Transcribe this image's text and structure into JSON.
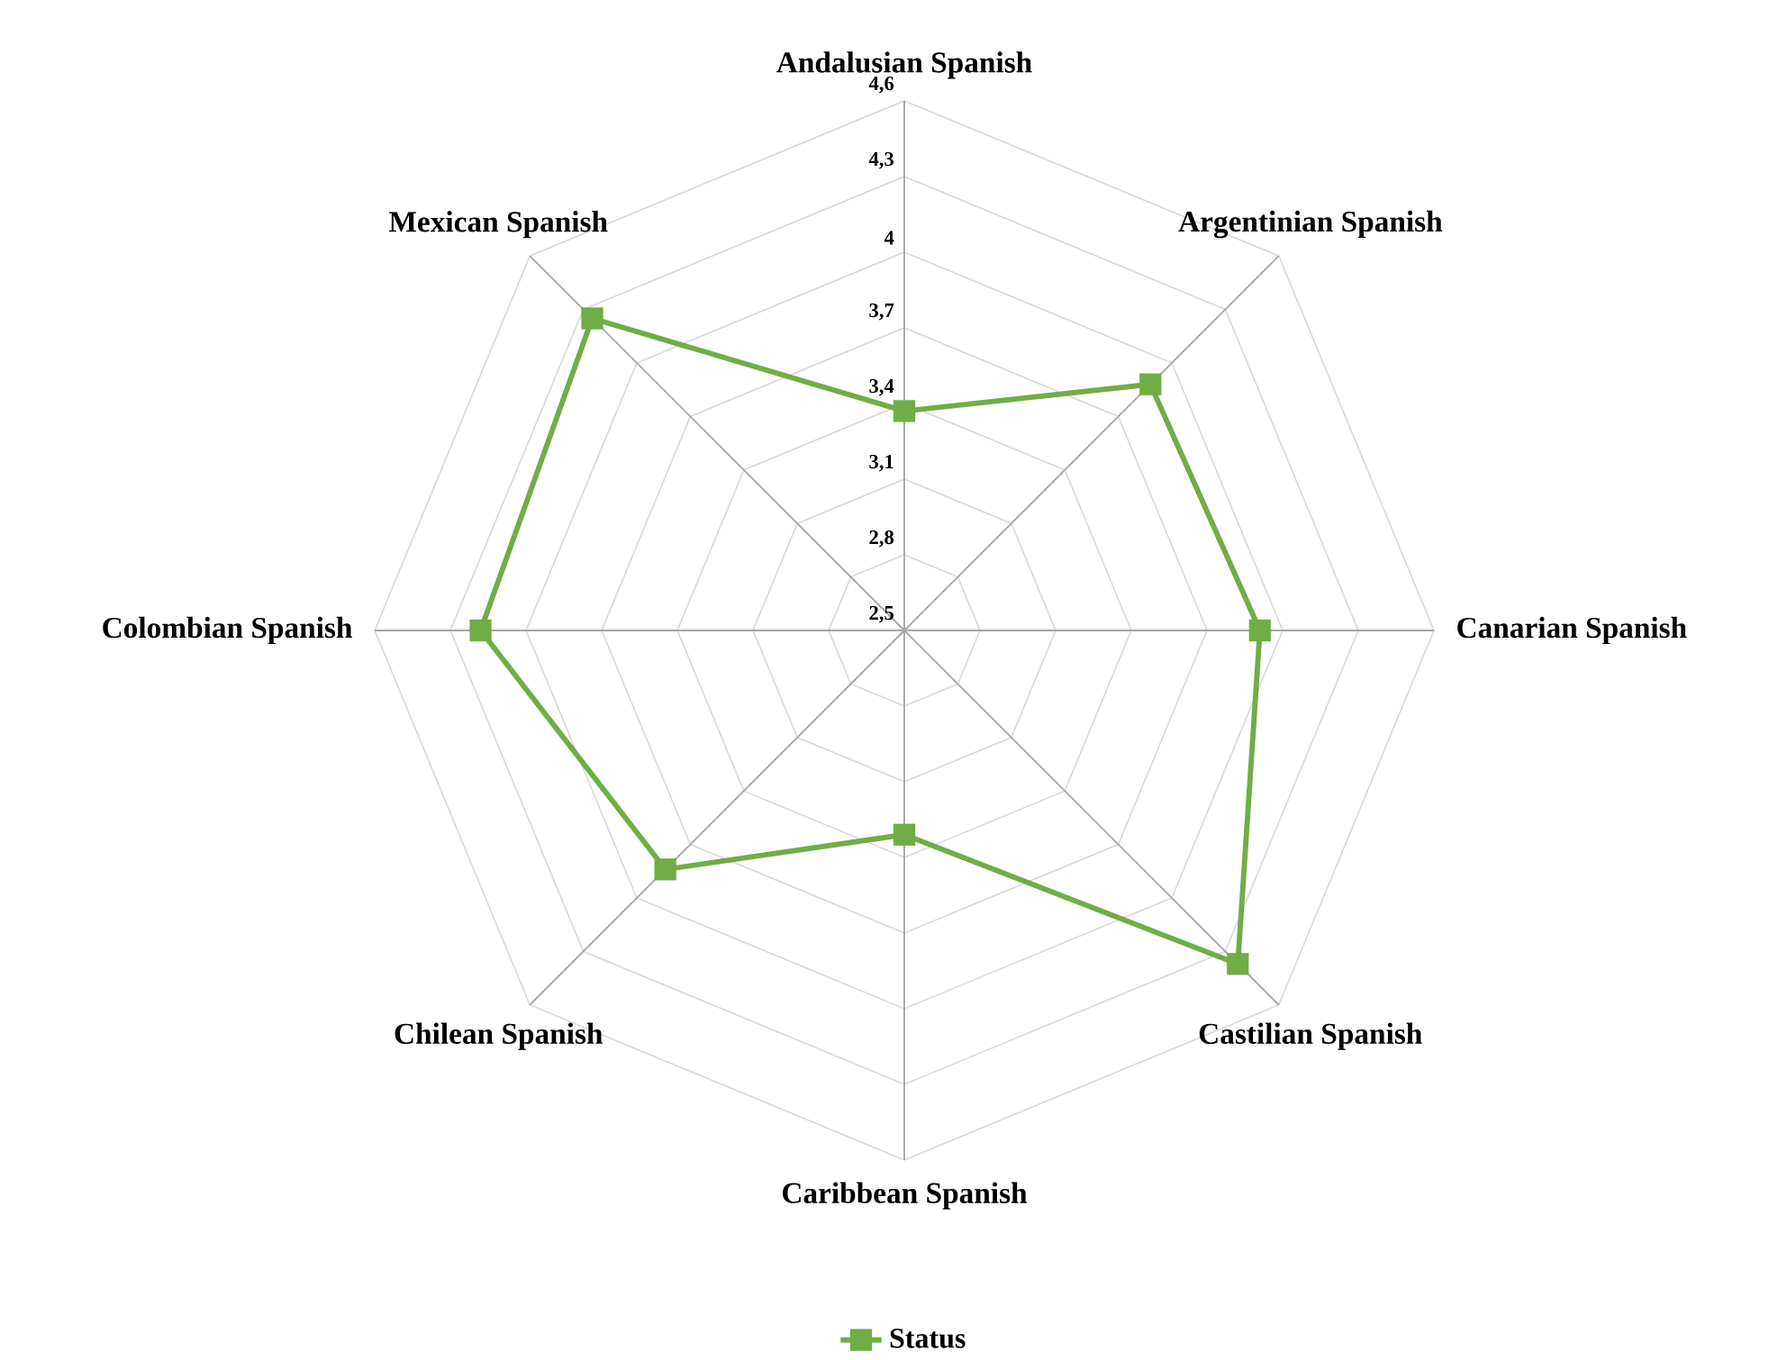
{
  "chart_data": {
    "type": "radar",
    "categories": [
      "Andalusian Spanish",
      "Argentinian Spanish",
      "Canarian Spanish",
      "Castilian Spanish",
      "Caribbean Spanish",
      "Chilean Spanish",
      "Colombian Spanish",
      "Mexican Spanish"
    ],
    "series": [
      {
        "name": "Status",
        "color": "#70ad47",
        "values": [
          3.37,
          3.88,
          3.91,
          4.37,
          3.31,
          3.84,
          4.18,
          4.25
        ]
      }
    ],
    "ylim": [
      2.5,
      4.6
    ],
    "yticks": [
      {
        "value": 2.5,
        "label": "2,5"
      },
      {
        "value": 2.8,
        "label": "2,8"
      },
      {
        "value": 3.1,
        "label": "3,1"
      },
      {
        "value": 3.4,
        "label": "3,4"
      },
      {
        "value": 3.7,
        "label": "3,7"
      },
      4,
      {
        "value": 4.3,
        "label": "4,3"
      },
      {
        "value": 4.6,
        "label": "4,6"
      }
    ],
    "grid": true,
    "legend": "bottom",
    "marker": "square"
  }
}
